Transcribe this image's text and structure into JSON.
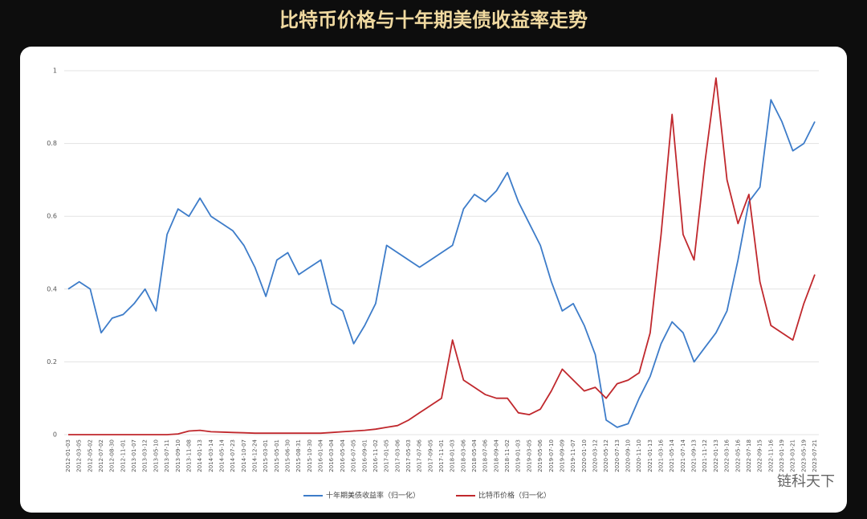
{
  "chart_data": {
    "type": "line",
    "title": "比特币价格与十年期美债收益率走势",
    "categories": [
      "2012-01-03",
      "2012-03-05",
      "2012-05-02",
      "2012-07-02",
      "2012-08-30",
      "2012-11-01",
      "2013-01-07",
      "2013-03-12",
      "2013-05-10",
      "2013-07-11",
      "2013-09-10",
      "2013-11-08",
      "2014-01-13",
      "2014-03-14",
      "2014-05-14",
      "2014-07-23",
      "2014-10-07",
      "2014-12-24",
      "2015-03-01",
      "2015-05-01",
      "2015-06-30",
      "2015-08-31",
      "2015-10-30",
      "2016-01-04",
      "2016-03-04",
      "2016-05-04",
      "2016-07-05",
      "2016-09-01",
      "2016-11-02",
      "2017-01-05",
      "2017-03-06",
      "2017-05-03",
      "2017-07-06",
      "2017-09-05",
      "2017-11-01",
      "2018-01-03",
      "2018-03-06",
      "2018-05-04",
      "2018-07-06",
      "2018-09-04",
      "2018-11-02",
      "2019-01-03",
      "2019-03-05",
      "2019-05-06",
      "2019-07-10",
      "2019-09-09",
      "2019-11-07",
      "2020-01-10",
      "2020-03-12",
      "2020-05-12",
      "2020-07-13",
      "2020-09-10",
      "2020-11-10",
      "2021-01-13",
      "2021-03-16",
      "2021-05-14",
      "2021-07-14",
      "2021-09-13",
      "2021-11-12",
      "2022-01-13",
      "2022-03-16",
      "2022-05-16",
      "2022-07-18",
      "2022-09-15",
      "2022-11-16",
      "2023-01-19",
      "2023-03-21",
      "2023-05-19",
      "2023-07-21"
    ],
    "series": [
      {
        "name": "十年期美债收益率（归一化）",
        "color": "#3d7cc9",
        "values": [
          0.4,
          0.42,
          0.4,
          0.28,
          0.32,
          0.33,
          0.36,
          0.4,
          0.34,
          0.55,
          0.62,
          0.6,
          0.65,
          0.6,
          0.58,
          0.56,
          0.52,
          0.46,
          0.38,
          0.48,
          0.5,
          0.44,
          0.46,
          0.48,
          0.36,
          0.34,
          0.25,
          0.3,
          0.36,
          0.52,
          0.5,
          0.48,
          0.46,
          0.48,
          0.5,
          0.52,
          0.62,
          0.66,
          0.64,
          0.67,
          0.72,
          0.64,
          0.58,
          0.52,
          0.42,
          0.34,
          0.36,
          0.3,
          0.22,
          0.04,
          0.02,
          0.03,
          0.1,
          0.16,
          0.25,
          0.31,
          0.28,
          0.2,
          0.24,
          0.28,
          0.34,
          0.48,
          0.64,
          0.68,
          0.92,
          0.86,
          0.78,
          0.8,
          0.86
        ]
      },
      {
        "name": "比特币价格（归一化）",
        "color": "#c0282d",
        "values": [
          0,
          0,
          0,
          0,
          0,
          0,
          0,
          0,
          0,
          0,
          0.002,
          0.01,
          0.012,
          0.008,
          0.007,
          0.006,
          0.005,
          0.004,
          0.004,
          0.004,
          0.004,
          0.004,
          0.004,
          0.004,
          0.006,
          0.008,
          0.01,
          0.012,
          0.015,
          0.02,
          0.025,
          0.04,
          0.06,
          0.08,
          0.1,
          0.26,
          0.15,
          0.13,
          0.11,
          0.1,
          0.1,
          0.06,
          0.055,
          0.07,
          0.12,
          0.18,
          0.15,
          0.12,
          0.13,
          0.1,
          0.14,
          0.15,
          0.17,
          0.28,
          0.55,
          0.88,
          0.55,
          0.48,
          0.75,
          0.98,
          0.7,
          0.58,
          0.66,
          0.42,
          0.3,
          0.28,
          0.26,
          0.36,
          0.44
        ]
      }
    ],
    "ylim": [
      0,
      1
    ],
    "yticks": [
      0,
      0.2,
      0.4,
      0.6,
      0.8,
      1
    ],
    "grid": true,
    "watermark": "链科天下"
  }
}
